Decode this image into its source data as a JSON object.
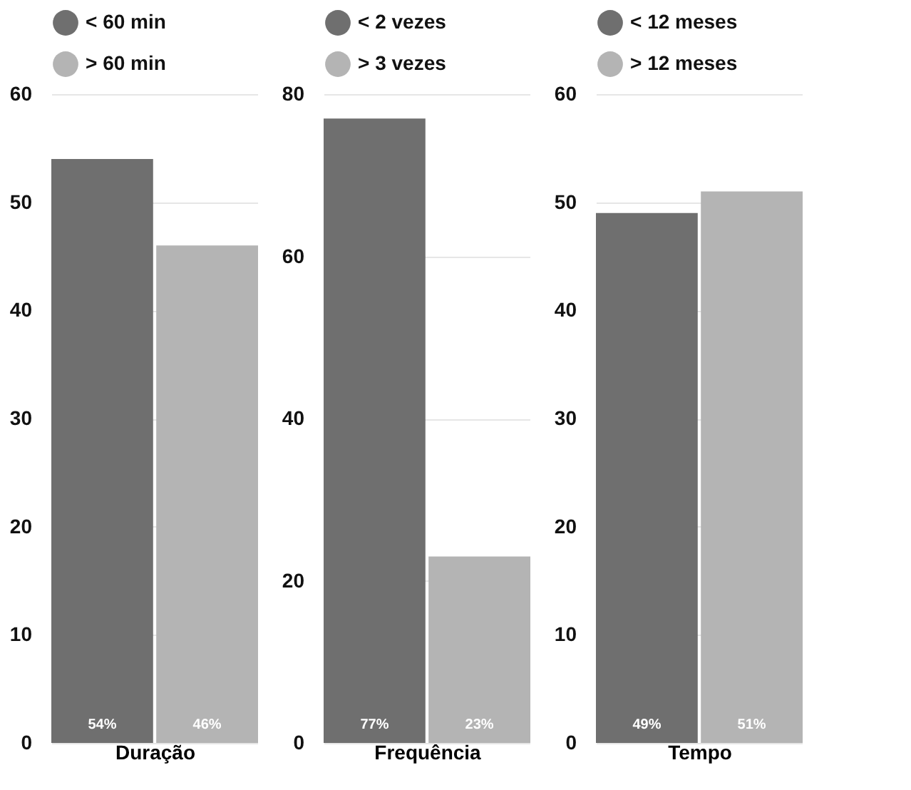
{
  "chart_data": [
    {
      "type": "bar",
      "xlabel": "Duração",
      "categories": [
        null
      ],
      "ylim": [
        0,
        60
      ],
      "yticks": [
        0,
        10,
        20,
        30,
        40,
        50,
        60
      ],
      "grid": "y",
      "legend": "top left",
      "series": [
        {
          "name": "< 60 min",
          "color": "#6f6f6f",
          "values": [
            54
          ],
          "value_labels": [
            "54%"
          ]
        },
        {
          "name": "> 60 min",
          "color": "#b4b4b4",
          "values": [
            46
          ],
          "value_labels": [
            "46%"
          ]
        }
      ]
    },
    {
      "type": "bar",
      "xlabel": "Frequência",
      "categories": [
        null
      ],
      "ylim": [
        0,
        80
      ],
      "yticks": [
        0,
        20,
        40,
        60,
        80
      ],
      "grid": "y",
      "legend": "top left",
      "series": [
        {
          "name": "< 2 vezes",
          "color": "#6f6f6f",
          "values": [
            77
          ],
          "value_labels": [
            "77%"
          ]
        },
        {
          "name": "> 3 vezes",
          "color": "#b4b4b4",
          "values": [
            23
          ],
          "value_labels": [
            "23%"
          ]
        }
      ]
    },
    {
      "type": "bar",
      "xlabel": "Tempo",
      "categories": [
        null
      ],
      "ylim": [
        0,
        60
      ],
      "yticks": [
        0,
        10,
        20,
        30,
        40,
        50,
        60
      ],
      "grid": "y",
      "legend": "top left",
      "series": [
        {
          "name": "< 12 meses",
          "color": "#6f6f6f",
          "values": [
            49
          ],
          "value_labels": [
            "49%"
          ]
        },
        {
          "name": "> 12 meses",
          "color": "#b4b4b4",
          "values": [
            51
          ],
          "value_labels": [
            "51%"
          ]
        }
      ]
    }
  ]
}
